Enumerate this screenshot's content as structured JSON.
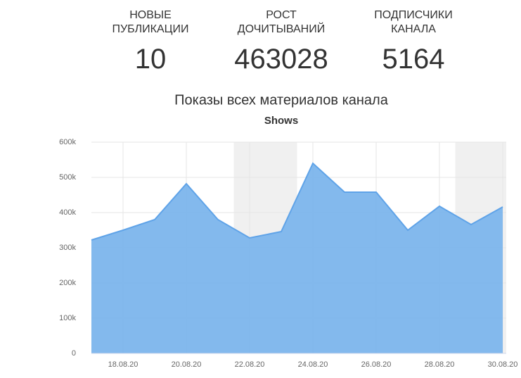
{
  "stats": [
    {
      "label": "НОВЫЕ ПУБЛИКАЦИИ",
      "value": "10"
    },
    {
      "label": "РОСТ ДОЧИТЫВАНИЙ",
      "value": "463028"
    },
    {
      "label": "ПОДПИСЧИКИ КАНАЛА",
      "value": "5164"
    }
  ],
  "chart_data": {
    "type": "area",
    "title": "Показы всех материалов канала",
    "subtitle": "Shows",
    "categories": [
      null,
      "18.08.20",
      null,
      "20.08.20",
      null,
      "22.08.20",
      null,
      "24.08.20",
      null,
      "26.08.20",
      null,
      "28.08.20",
      null,
      "30.08.20"
    ],
    "series": [
      {
        "name": "Shows",
        "color": "#7cb5ec",
        "values": [
          322000,
          350000,
          380000,
          482000,
          380000,
          328000,
          346000,
          540000,
          458000,
          458000,
          350000,
          418000,
          366000,
          416000
        ]
      }
    ],
    "ylim": [
      0,
      600000
    ],
    "yticks": [
      0,
      {
        "value": 100000,
        "label": "100k"
      },
      {
        "value": 200000,
        "label": "200k"
      },
      {
        "value": 300000,
        "label": "300k"
      },
      {
        "value": 400000,
        "label": "400k"
      },
      {
        "value": 500000,
        "label": "500k"
      },
      {
        "value": 600000,
        "label": "600k"
      }
    ],
    "plot_bands": [
      {
        "from": 4.5,
        "to": 6.5
      },
      {
        "from": 11.5,
        "to": 13.5
      }
    ],
    "grid": true,
    "legend": false
  }
}
